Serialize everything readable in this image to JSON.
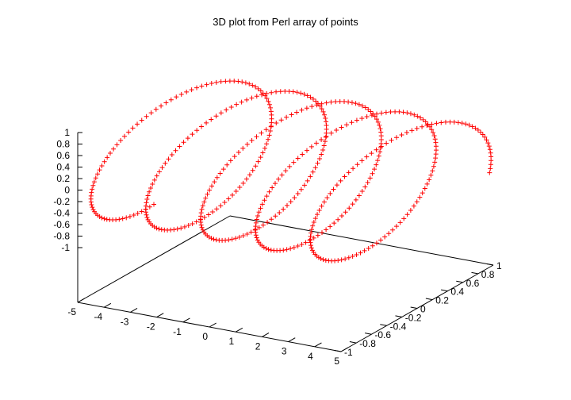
{
  "chart_data": {
    "type": "scatter",
    "title": "3D plot from Perl array of points",
    "xlabel": "",
    "ylabel": "",
    "zlabel": "",
    "grid": false,
    "legend": "none",
    "marker": "+",
    "color": "#ff0000",
    "xlim": [
      -5,
      5
    ],
    "ylim": [
      -1,
      1
    ],
    "zlim": [
      -1,
      1
    ],
    "x_ticks": [
      "-5",
      "-4",
      "-3",
      "-2",
      "-1",
      "0",
      "1",
      "2",
      "3",
      "4",
      "5"
    ],
    "y_ticks": [
      "-1",
      "-0.8",
      "-0.6",
      "-0.4",
      "-0.2",
      "0",
      "0.2",
      "0.4",
      "0.6",
      "0.8",
      "1"
    ],
    "z_ticks": [
      "-1",
      "-0.8",
      "-0.6",
      "-0.4",
      "-0.2",
      "0",
      "0.2",
      "0.4",
      "0.6",
      "0.8",
      "1"
    ],
    "series": [
      {
        "curve": "helix",
        "x": [
          -5,
          5
        ],
        "y": "sin(t)",
        "z": "cos(t)",
        "turns": 4.8,
        "phase_start_deg": 180,
        "points": 500
      }
    ]
  }
}
